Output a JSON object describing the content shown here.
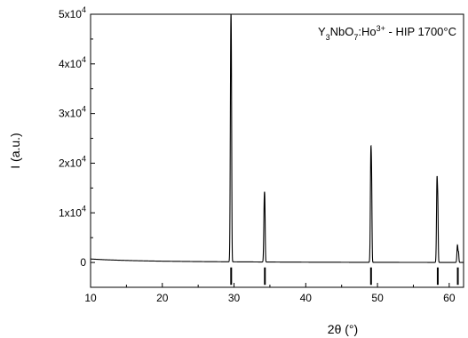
{
  "chart_data": {
    "type": "line",
    "title": "",
    "annotation": {
      "parts": [
        {
          "text": "Y",
          "shift": "base"
        },
        {
          "text": "3",
          "shift": "sub"
        },
        {
          "text": "NbO",
          "shift": "base"
        },
        {
          "text": "7",
          "shift": "sub"
        },
        {
          "text": ":Ho",
          "shift": "base"
        },
        {
          "text": "3+",
          "shift": "super"
        },
        {
          "text": " - HIP 1700°C",
          "shift": "base"
        }
      ],
      "placement": "top-right"
    },
    "xlabel": "2θ (°)",
    "ylabel": "I (a.u.)",
    "xlim": [
      10,
      62
    ],
    "ylim": [
      -5000,
      50000
    ],
    "xticks": [
      {
        "value": 10,
        "label": "10"
      },
      {
        "value": 20,
        "label": "20"
      },
      {
        "value": 30,
        "label": "30"
      },
      {
        "value": 40,
        "label": "40"
      },
      {
        "value": 50,
        "label": "50"
      },
      {
        "value": 60,
        "label": "60"
      }
    ],
    "yticks": [
      {
        "value": 0,
        "mant": "0",
        "exp": ""
      },
      {
        "value": 10000,
        "mant": "1x10",
        "exp": "4"
      },
      {
        "value": 20000,
        "mant": "2x10",
        "exp": "4"
      },
      {
        "value": 30000,
        "mant": "3x10",
        "exp": "4"
      },
      {
        "value": 40000,
        "mant": "4x10",
        "exp": "4"
      },
      {
        "value": 50000,
        "mant": "5x10",
        "exp": "4"
      }
    ],
    "grid": false,
    "baseline": [
      [
        10,
        700
      ],
      [
        12,
        550
      ],
      [
        14,
        450
      ],
      [
        16,
        370
      ],
      [
        18,
        310
      ],
      [
        20,
        260
      ],
      [
        25,
        180
      ],
      [
        30,
        130
      ],
      [
        35,
        90
      ],
      [
        40,
        60
      ],
      [
        45,
        40
      ],
      [
        50,
        25
      ],
      [
        55,
        15
      ],
      [
        62,
        10
      ]
    ],
    "peaks": [
      {
        "x": 29.55,
        "height": 44000,
        "width": 0.07
      },
      {
        "x": 29.64,
        "height": 20000,
        "width": 0.05
      },
      {
        "x": 34.22,
        "height": 12300,
        "width": 0.07
      },
      {
        "x": 34.31,
        "height": 6000,
        "width": 0.05
      },
      {
        "x": 49.08,
        "height": 22200,
        "width": 0.07
      },
      {
        "x": 49.19,
        "height": 10800,
        "width": 0.05
      },
      {
        "x": 58.3,
        "height": 16800,
        "width": 0.07
      },
      {
        "x": 58.42,
        "height": 8600,
        "width": 0.05
      },
      {
        "x": 61.15,
        "height": 3500,
        "width": 0.07
      },
      {
        "x": 61.3,
        "height": 1800,
        "width": 0.05
      }
    ],
    "reference_lines": [
      29.6,
      34.3,
      49.1,
      58.4,
      61.2
    ],
    "reference_range": [
      -1000,
      -4500
    ]
  }
}
